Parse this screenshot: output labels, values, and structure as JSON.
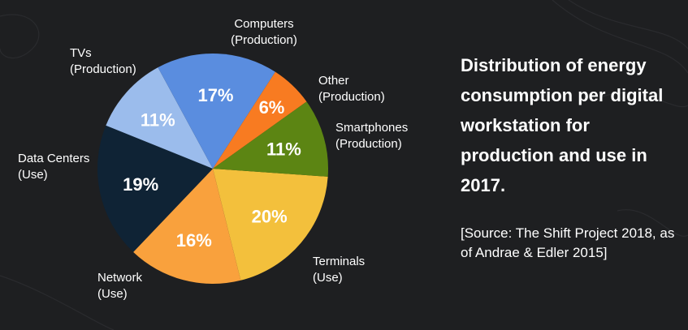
{
  "chart_data": {
    "type": "pie",
    "title": "Distribution of energy consumption per digital workstation for production and use in 2017.",
    "source": "[Source: The Shift Project 2018, as of Andrae & Edler 2015]",
    "unit": "%",
    "slices": [
      {
        "label_line1": "Terminals",
        "label_line2": "(Use)",
        "value": 20,
        "text": "20%",
        "color": "#f3c03c"
      },
      {
        "label_line1": "Network",
        "label_line2": "(Use)",
        "value": 16,
        "text": "16%",
        "color": "#f9a13d"
      },
      {
        "label_line1": "Data Centers",
        "label_line2": "(Use)",
        "value": 19,
        "text": "19%",
        "color": "#0f2335"
      },
      {
        "label_line1": "TVs",
        "label_line2": "(Production)",
        "value": 11,
        "text": "11%",
        "color": "#9bbcec"
      },
      {
        "label_line1": "Computers",
        "label_line2": "(Production)",
        "value": 17,
        "text": "17%",
        "color": "#5a8ddf"
      },
      {
        "label_line1": "Other",
        "label_line2": "(Production)",
        "value": 6,
        "text": "6%",
        "color": "#f87b21"
      },
      {
        "label_line1": "Smartphones",
        "label_line2": "(Production)",
        "value": 11,
        "text": "11%",
        "color": "#5c8513"
      }
    ],
    "legend": "none (labels placed next to slices)"
  }
}
